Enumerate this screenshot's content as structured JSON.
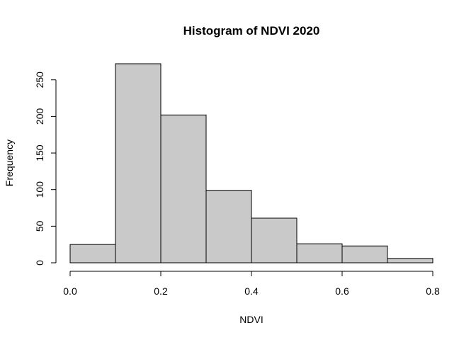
{
  "chart_data": {
    "type": "bar",
    "title": "Histogram of NDVI 2020",
    "xlabel": "NDVI",
    "ylabel": "Frequency",
    "bins": [
      {
        "x0": 0.0,
        "x1": 0.1,
        "count": 25
      },
      {
        "x0": 0.1,
        "x1": 0.2,
        "count": 272
      },
      {
        "x0": 0.2,
        "x1": 0.3,
        "count": 202
      },
      {
        "x0": 0.3,
        "x1": 0.4,
        "count": 99
      },
      {
        "x0": 0.4,
        "x1": 0.5,
        "count": 61
      },
      {
        "x0": 0.5,
        "x1": 0.6,
        "count": 26
      },
      {
        "x0": 0.6,
        "x1": 0.7,
        "count": 23
      },
      {
        "x0": 0.7,
        "x1": 0.8,
        "count": 6
      }
    ],
    "xlim": [
      0.0,
      0.8
    ],
    "ylim": [
      0,
      272
    ],
    "x_ticks": [
      0.0,
      0.2,
      0.4,
      0.6,
      0.8
    ],
    "x_tick_labels": [
      "0.0",
      "0.2",
      "0.4",
      "0.6",
      "0.8"
    ],
    "y_ticks": [
      0,
      50,
      100,
      150,
      200,
      250
    ],
    "y_tick_labels": [
      "0",
      "50",
      "100",
      "150",
      "200",
      "250"
    ],
    "bar_color": "#c9c9c9",
    "edge_color": "#000000",
    "grid": false,
    "legend": "none"
  }
}
